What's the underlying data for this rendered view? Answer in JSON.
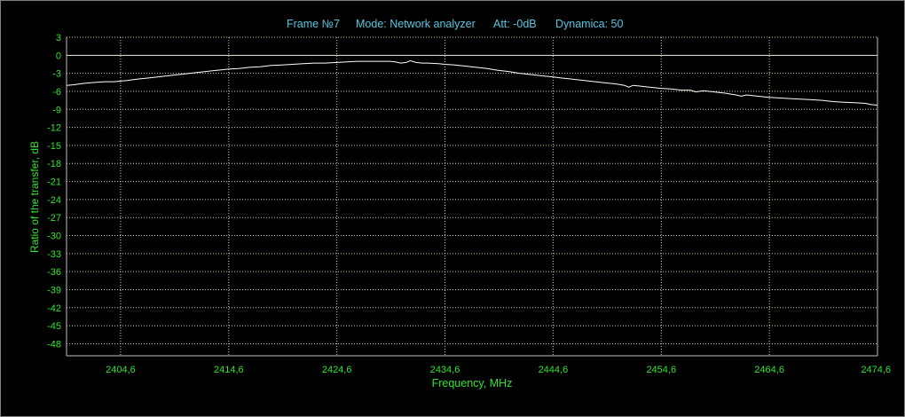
{
  "header": {
    "frame": "Frame №7",
    "mode": "Mode: Network analyzer",
    "att": "Att: -0dB",
    "dynamica": "Dynamica: 50"
  },
  "colors": {
    "background": "#000000",
    "header_text": "#57c6e0",
    "axis_text": "#2ee52e",
    "grid_dots": "#d8d8a0",
    "trace": "#ffffff",
    "zero_line": "#f0f0e0",
    "axes": "#c0c0c0"
  },
  "chart_data": {
    "type": "line",
    "xlabel": "Frequency, MHz",
    "ylabel": "Ratio of the transfer, dB",
    "xlim": [
      2399.6,
      2474.6
    ],
    "ylim": [
      -50,
      3
    ],
    "x_ticks": [
      "2404,6",
      "2414,6",
      "2424,6",
      "2434,6",
      "2444,6",
      "2454,6",
      "2464,6",
      "2474,6"
    ],
    "x_tick_values": [
      2404.6,
      2414.6,
      2424.6,
      2434.6,
      2444.6,
      2454.6,
      2464.6,
      2474.6
    ],
    "y_ticks": [
      "3",
      "0",
      "-3",
      "-6",
      "-9",
      "-12",
      "-15",
      "-18",
      "-21",
      "-24",
      "-27",
      "-30",
      "-33",
      "-36",
      "-39",
      "-42",
      "-45",
      "-48"
    ],
    "y_tick_values": [
      3,
      0,
      -3,
      -6,
      -9,
      -12,
      -15,
      -18,
      -21,
      -24,
      -27,
      -30,
      -33,
      -36,
      -39,
      -42,
      -45,
      -48
    ],
    "grid": true,
    "reference_line": 0,
    "series": [
      {
        "x": [
          2399.6,
          2400.3,
          2401.0,
          2401.6,
          2402.4,
          2403.1,
          2404.0,
          2404.6,
          2405.2,
          2406.0,
          2407.0,
          2408.0,
          2409.0,
          2410.0,
          2411.0,
          2412.0,
          2413.0,
          2414.0,
          2414.6,
          2415.5,
          2416.5,
          2417.5,
          2418.5,
          2419.5,
          2420.5,
          2421.5,
          2422.5,
          2423.5,
          2424.6,
          2425.5,
          2426.5,
          2427.5,
          2428.5,
          2429.5,
          2430.0,
          2430.5,
          2431.0,
          2431.4,
          2431.9,
          2432.5,
          2433.0,
          2434.0,
          2434.6,
          2435.5,
          2436.5,
          2437.5,
          2438.5,
          2439.5,
          2440.5,
          2441.5,
          2442.5,
          2443.5,
          2444.6,
          2445.5,
          2446.5,
          2447.5,
          2448.5,
          2449.5,
          2450.5,
          2451.2,
          2451.6,
          2452.0,
          2452.5,
          2453.5,
          2454.6,
          2455.5,
          2456.5,
          2457.3,
          2457.8,
          2458.5,
          2459.5,
          2460.5,
          2461.5,
          2462.0,
          2462.5,
          2463.5,
          2464.6,
          2465.5,
          2466.5,
          2467.5,
          2468.5,
          2469.5,
          2470.5,
          2471.5,
          2472.5,
          2473.5,
          2474.0,
          2474.6
        ],
        "y": [
          -5.0,
          -4.9,
          -4.7,
          -4.6,
          -4.5,
          -4.4,
          -4.4,
          -4.3,
          -4.2,
          -4.0,
          -3.8,
          -3.6,
          -3.4,
          -3.2,
          -3.0,
          -2.8,
          -2.6,
          -2.4,
          -2.3,
          -2.2,
          -2.0,
          -1.9,
          -1.7,
          -1.6,
          -1.5,
          -1.4,
          -1.3,
          -1.3,
          -1.2,
          -1.1,
          -1.0,
          -1.0,
          -1.0,
          -1.0,
          -1.1,
          -1.3,
          -1.2,
          -0.9,
          -1.2,
          -1.3,
          -1.3,
          -1.4,
          -1.5,
          -1.6,
          -1.8,
          -2.0,
          -2.2,
          -2.5,
          -2.7,
          -3.0,
          -3.2,
          -3.4,
          -3.6,
          -3.8,
          -4.0,
          -4.2,
          -4.4,
          -4.6,
          -4.8,
          -5.0,
          -5.3,
          -5.0,
          -5.1,
          -5.3,
          -5.5,
          -5.6,
          -5.8,
          -5.8,
          -6.1,
          -5.9,
          -6.1,
          -6.3,
          -6.6,
          -6.8,
          -6.6,
          -6.8,
          -7.0,
          -7.1,
          -7.2,
          -7.3,
          -7.4,
          -7.5,
          -7.7,
          -7.8,
          -7.9,
          -8.0,
          -8.2,
          -8.3
        ]
      }
    ]
  }
}
